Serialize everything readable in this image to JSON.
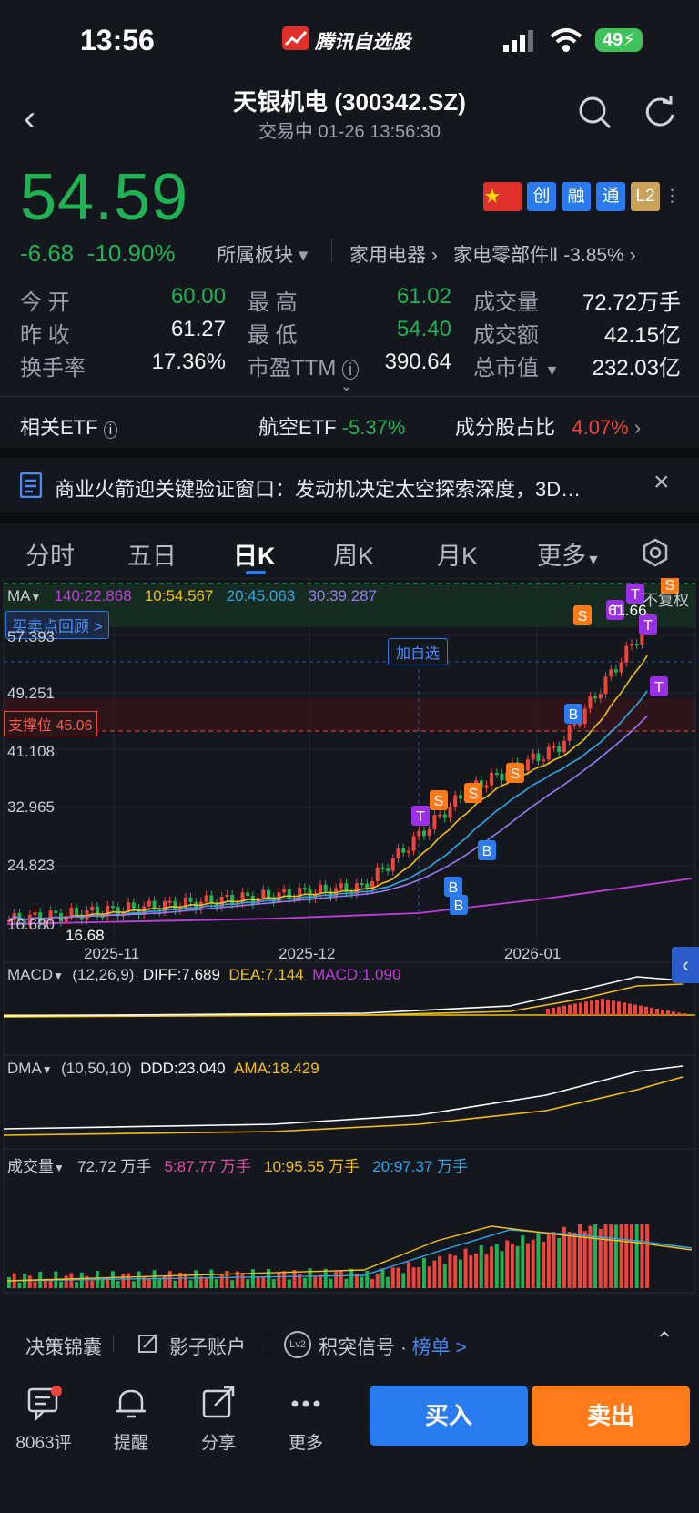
{
  "status_bar": {
    "time": "13:56",
    "app_name": "腾讯自选股",
    "battery": "49"
  },
  "header": {
    "title": "天银机电 (300342.SZ)",
    "subtitle": "交易中   01-26 13:56:30"
  },
  "quote": {
    "price": "54.59",
    "change": "-6.68",
    "change_pct": "-10.90%",
    "sector_label": "所属板块",
    "industry1": "家用电器",
    "industry2": "家电零部件Ⅱ",
    "industry2_chg": "-3.85%",
    "tags": [
      "创",
      "融",
      "通",
      "L2"
    ]
  },
  "stats": {
    "open_label": "今  开",
    "open": "60.00",
    "high_label": "最  高",
    "high": "61.02",
    "volume_label": "成交量",
    "volume": "72.72万手",
    "prev_label": "昨  收",
    "prev": "61.27",
    "low_label": "最  低",
    "low": "54.40",
    "amount_label": "成交额",
    "amount": "42.15亿",
    "turnover_label": "换手率",
    "turnover": "17.36%",
    "pe_label": "市盈TTM",
    "pe": "390.64",
    "mcap_label": "总市值",
    "mcap": "232.03亿"
  },
  "etf": {
    "label": "相关ETF",
    "name": "航空ETF",
    "name_chg": "-5.37%",
    "weight_label": "成分股占比",
    "weight": "4.07%"
  },
  "news": {
    "text": "商业火箭迎关键验证窗口：发动机决定太空探索深度，3D…"
  },
  "tabs": [
    "分时",
    "五日",
    "日K",
    "周K",
    "月K",
    "更多"
  ],
  "active_tab": "日K",
  "ma_legend": {
    "ma": "MA",
    "ma140": "140:22.868",
    "ma10": "10:54.567",
    "ma20": "20:45.063",
    "ma30": "30:39.287",
    "adjust": "不复权"
  },
  "chart_labels": {
    "review": "买卖点回顾 >",
    "add_watch": "加自选",
    "support": "支撑位 45.06",
    "high_mark": "61.66",
    "low_mark": "16.68",
    "y_ticks": [
      "57.393",
      "49.251",
      "41.108",
      "32.965",
      "24.823",
      "16.680"
    ],
    "x_ticks": [
      "2025-11",
      "2025-12",
      "2026-01"
    ]
  },
  "macd": {
    "name": "MACD",
    "params": "(12,26,9)",
    "diff": "DIFF:7.689",
    "dea": "DEA:7.144",
    "macd": "MACD:1.090"
  },
  "dma": {
    "name": "DMA",
    "params": "(10,50,10)",
    "ddd": "DDD:23.040",
    "ama": "AMA:18.429"
  },
  "vol": {
    "name": "成交量",
    "v": "72.72 万手",
    "ma5": "5:87.77 万手",
    "ma10": "10:95.55 万手",
    "ma20": "20:97.37 万手"
  },
  "tools": {
    "item1": "决策锦囊",
    "item2": "影子账户",
    "item3": "积突信号 · ",
    "item3_link": "榜单 >",
    "lv2": "Lv2"
  },
  "bottom_nav": {
    "comment": "8063评",
    "alert": "提醒",
    "share": "分享",
    "more": "更多",
    "buy": "买入",
    "sell": "卖出"
  },
  "colors": {
    "up": "#f0443a",
    "down": "#20b354",
    "buy": "#2b7bf0",
    "sell": "#ff7b1a",
    "ma10": "#f2c010",
    "ma20": "#2ea7e8",
    "ma30": "#9a7af0",
    "ma140": "#c23ddc"
  },
  "chart_data": {
    "type": "candlestick",
    "x_ticks": [
      "2025-11",
      "2025-12",
      "2026-01"
    ],
    "y_ticks": [
      57.393,
      49.251,
      41.108,
      32.965,
      24.823,
      16.68
    ],
    "ylim": [
      16.68,
      61.66
    ],
    "last_close": 54.59,
    "series": [
      {
        "name": "MA10",
        "value": 54.567
      },
      {
        "name": "MA20",
        "value": 45.063
      },
      {
        "name": "MA30",
        "value": 39.287
      },
      {
        "name": "MA140",
        "value": 22.868
      }
    ]
  }
}
